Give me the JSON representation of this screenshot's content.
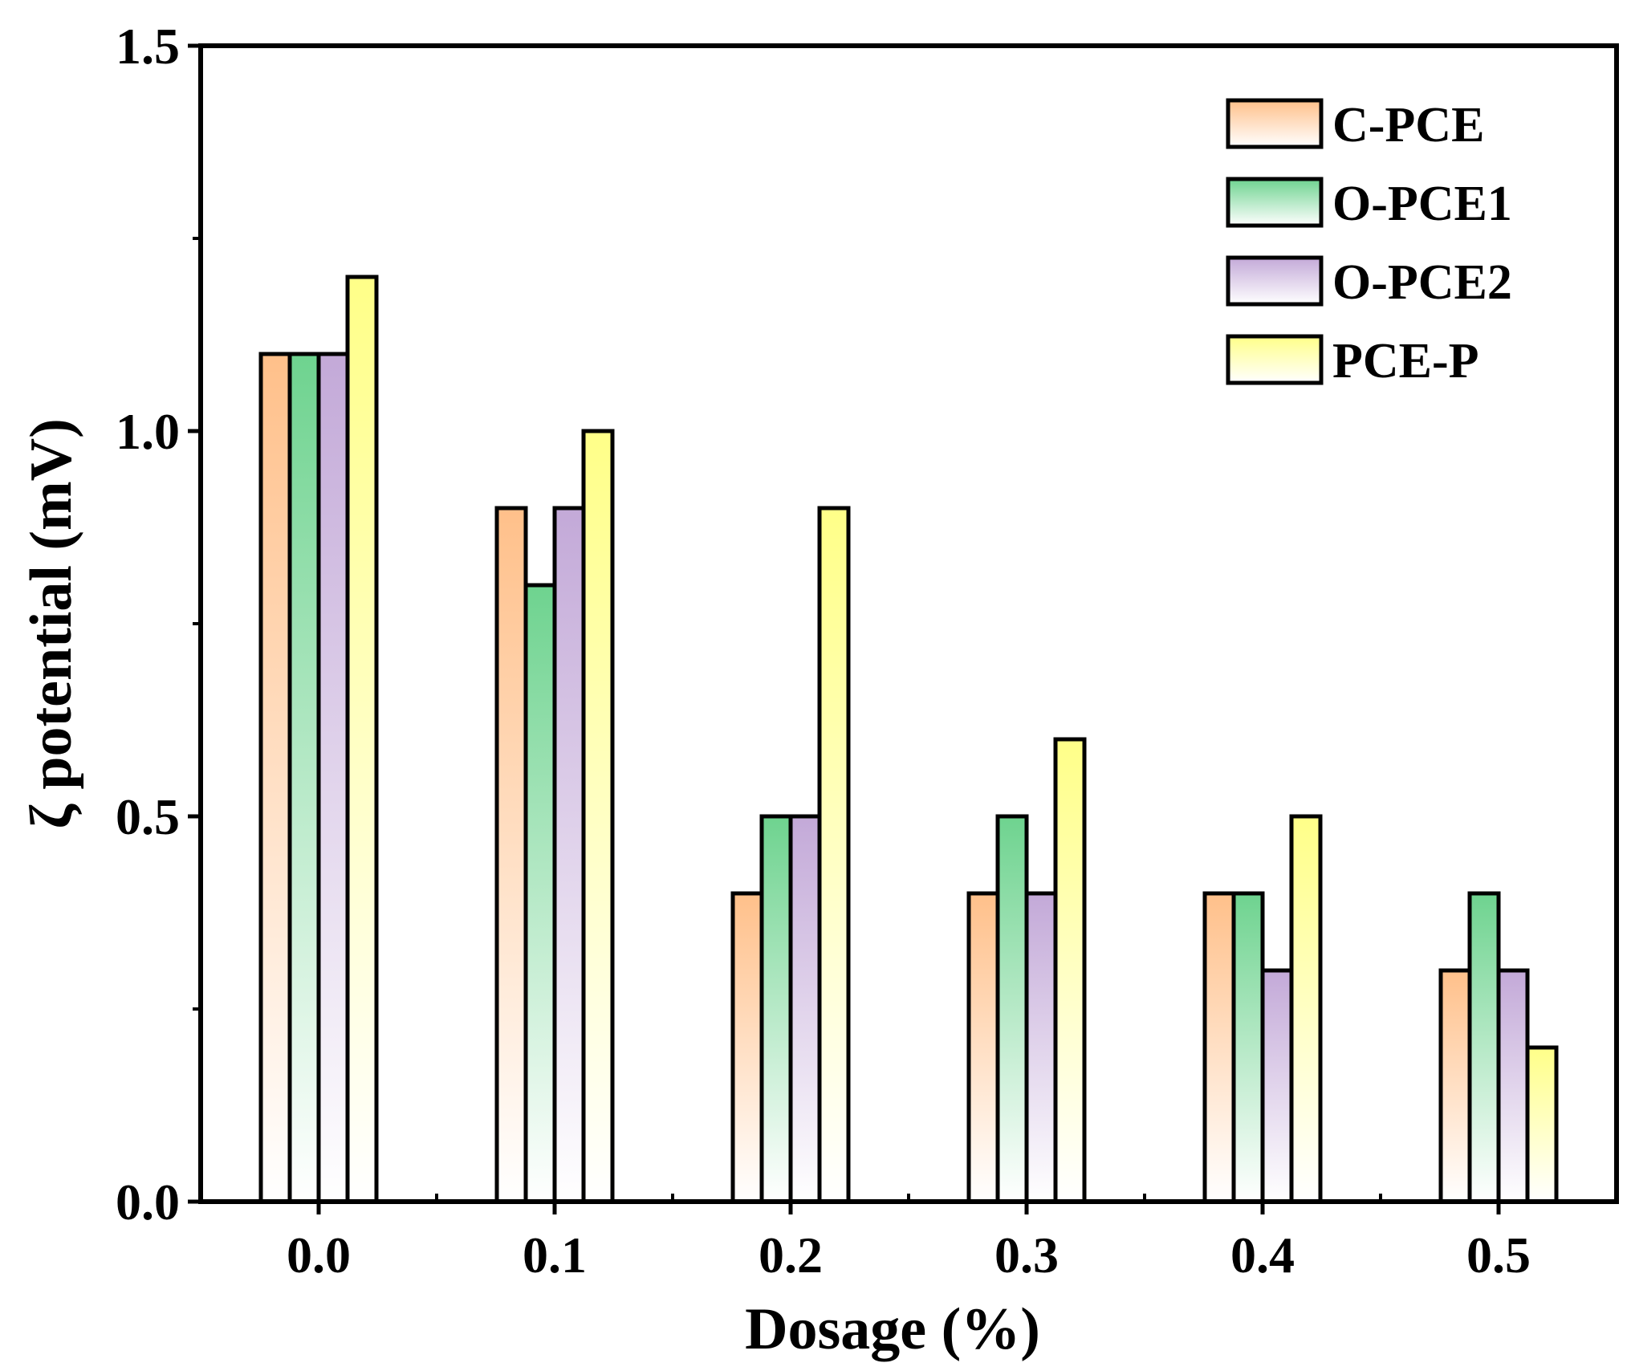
{
  "chart_data": {
    "type": "bar",
    "title": "",
    "xlabel": "Dosage (%)",
    "ylabel": "ζ potential (mV)",
    "categories": [
      "0.0",
      "0.1",
      "0.2",
      "0.3",
      "0.4",
      "0.5"
    ],
    "ylim": [
      0.0,
      1.5
    ],
    "yticks": [
      "0.0",
      "0.5",
      "1.0",
      "1.5"
    ],
    "grid": false,
    "legend_position": "top-right",
    "series": [
      {
        "name": "C-PCE",
        "color": "#ffc08a",
        "values": [
          1.1,
          0.9,
          0.4,
          0.4,
          0.4,
          0.3
        ]
      },
      {
        "name": "O-PCE1",
        "color": "#6ed38f",
        "values": [
          1.1,
          0.8,
          0.5,
          0.5,
          0.4,
          0.4
        ]
      },
      {
        "name": "O-PCE2",
        "color": "#c3a9d8",
        "values": [
          1.1,
          0.9,
          0.5,
          0.4,
          0.3,
          0.3
        ]
      },
      {
        "name": "PCE-P",
        "color": "#ffff88",
        "values": [
          1.2,
          1.0,
          0.9,
          0.6,
          0.5,
          0.2
        ]
      }
    ]
  }
}
